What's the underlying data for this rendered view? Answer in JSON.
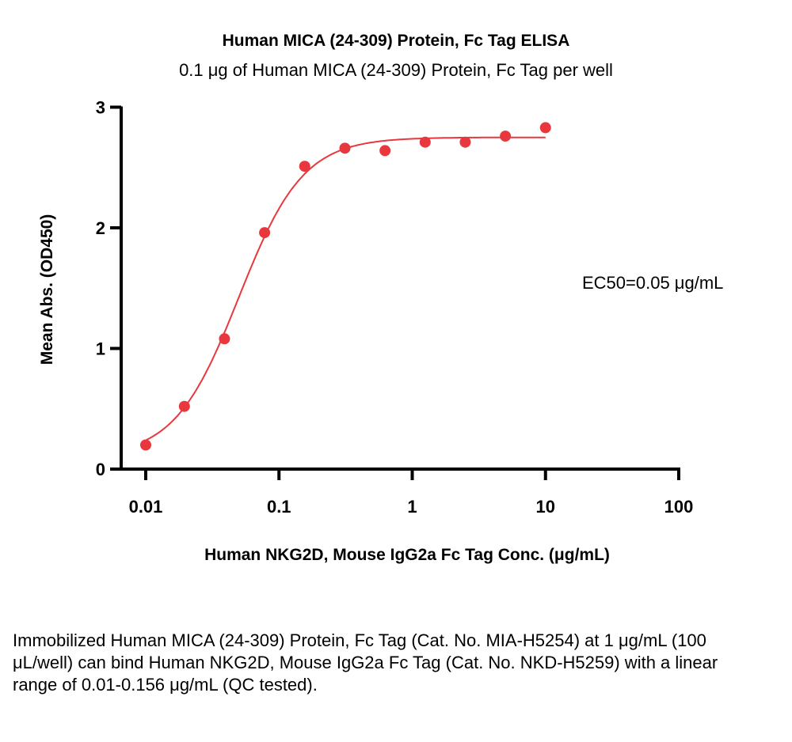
{
  "chart_data": {
    "type": "scatter",
    "title": "Human MICA (24-309) Protein, Fc Tag ELISA",
    "subtitle": "0.1 μg of Human MICA (24-309) Protein, Fc Tag per well",
    "xlabel": "Human NKG2D, Mouse IgG2a Fc Tag Conc. (μg/mL)",
    "ylabel": "Mean Abs. (OD450)",
    "xscale": "log",
    "xlim": [
      0.01,
      100
    ],
    "ylim": [
      0,
      3
    ],
    "xticks": [
      "0.01",
      "0.1",
      "1",
      "10",
      "100"
    ],
    "xtick_values": [
      0.01,
      0.1,
      1,
      10,
      100
    ],
    "yticks": [
      "0",
      "1",
      "2",
      "3"
    ],
    "ytick_values": [
      0,
      1,
      2,
      3
    ],
    "grid": false,
    "annotation": "EC50=0.05 μg/mL",
    "color": "#e8383d",
    "x": [
      0.01,
      0.0195,
      0.039,
      0.078,
      0.156,
      0.3125,
      0.625,
      1.25,
      2.5,
      5,
      10
    ],
    "y": [
      0.2,
      0.52,
      1.08,
      1.96,
      2.51,
      2.66,
      2.64,
      2.71,
      2.71,
      2.76,
      2.83
    ],
    "fit": {
      "model": "4PL",
      "bottom": 0.1,
      "top": 2.75,
      "ec50": 0.05,
      "hill": 1.8
    }
  },
  "caption": "Immobilized Human MICA (24-309) Protein, Fc Tag (Cat. No. MIA-H5254) at 1 μg/mL (100 μL/well) can bind Human NKG2D, Mouse IgG2a Fc Tag (Cat. No. NKD-H5259) with a linear range of 0.01-0.156 μg/mL (QC tested)."
}
